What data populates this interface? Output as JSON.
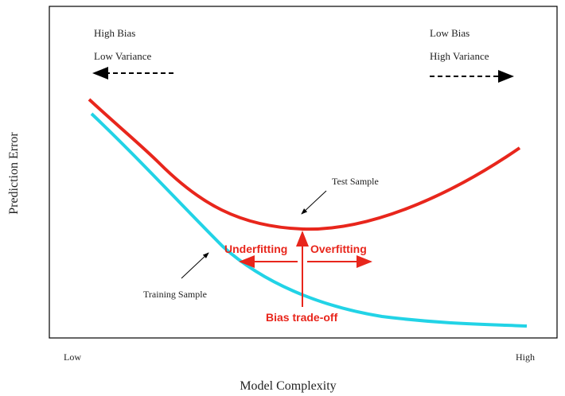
{
  "figure": {
    "y_axis_label": "Prediction Error",
    "x_axis_label": "Model Complexity",
    "x_low": "Low",
    "x_high": "High",
    "left_note": {
      "line1": "High Bias",
      "line2": "Low Variance"
    },
    "right_note": {
      "line1": "Low Bias",
      "line2": "High Variance"
    },
    "test_curve": "Test Sample",
    "training_curve": "Training Sample",
    "underfitting": "Underfitting",
    "overfitting": "Overfitting",
    "tradeoff": "Bias trade-off"
  }
}
